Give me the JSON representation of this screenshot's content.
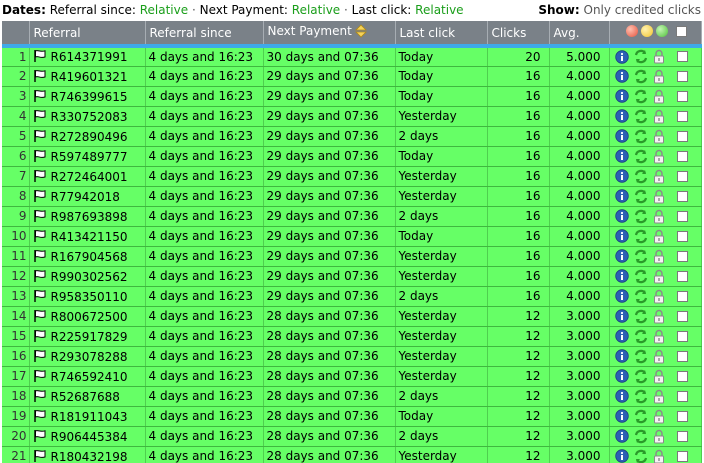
{
  "dates_bar": {
    "label": "Dates:",
    "referral_since_label": "Referral since:",
    "referral_since_value": "Relative",
    "next_payment_label": "Next Payment:",
    "next_payment_value": "Relative",
    "last_click_label": "Last click:",
    "last_click_value": "Relative",
    "separator": "·"
  },
  "show_bar": {
    "label": "Show:",
    "value": "Only credited clicks"
  },
  "columns": {
    "referral": "Referral",
    "referral_since": "Referral since",
    "next_payment": "Next Payment",
    "last_click": "Last click",
    "clicks": "Clicks",
    "avg": "Avg."
  },
  "colors": {
    "row_bg": "#66ff66",
    "header_bg": "#7a8188",
    "header_underline": "#3fa9e8",
    "link_green": "#1a9e1a"
  },
  "icons": [
    "flag-icon",
    "info-icon",
    "recycle-icon",
    "lock-icon",
    "sort-icon"
  ],
  "rows": [
    {
      "n": "1",
      "id": "R614371991",
      "since": "4 days and 16:23",
      "next": "30 days and 07:36",
      "last": "Today",
      "clicks": "20",
      "avg": "5.000"
    },
    {
      "n": "2",
      "id": "R419601321",
      "since": "4 days and 16:23",
      "next": "29 days and 07:36",
      "last": "Today",
      "clicks": "16",
      "avg": "4.000"
    },
    {
      "n": "3",
      "id": "R746399615",
      "since": "4 days and 16:23",
      "next": "29 days and 07:36",
      "last": "Today",
      "clicks": "16",
      "avg": "4.000"
    },
    {
      "n": "4",
      "id": "R330752083",
      "since": "4 days and 16:23",
      "next": "29 days and 07:36",
      "last": "Yesterday",
      "clicks": "16",
      "avg": "4.000"
    },
    {
      "n": "5",
      "id": "R272890496",
      "since": "4 days and 16:23",
      "next": "29 days and 07:36",
      "last": "2 days",
      "clicks": "16",
      "avg": "4.000"
    },
    {
      "n": "6",
      "id": "R597489777",
      "since": "4 days and 16:23",
      "next": "29 days and 07:36",
      "last": "Today",
      "clicks": "16",
      "avg": "4.000"
    },
    {
      "n": "7",
      "id": "R272464001",
      "since": "4 days and 16:23",
      "next": "29 days and 07:36",
      "last": "Yesterday",
      "clicks": "16",
      "avg": "4.000"
    },
    {
      "n": "8",
      "id": "R77942018",
      "since": "4 days and 16:23",
      "next": "29 days and 07:36",
      "last": "Yesterday",
      "clicks": "16",
      "avg": "4.000"
    },
    {
      "n": "9",
      "id": "R987693898",
      "since": "4 days and 16:23",
      "next": "29 days and 07:36",
      "last": "2 days",
      "clicks": "16",
      "avg": "4.000"
    },
    {
      "n": "10",
      "id": "R413421150",
      "since": "4 days and 16:23",
      "next": "29 days and 07:36",
      "last": "Today",
      "clicks": "16",
      "avg": "4.000"
    },
    {
      "n": "11",
      "id": "R167904568",
      "since": "4 days and 16:23",
      "next": "29 days and 07:36",
      "last": "Yesterday",
      "clicks": "16",
      "avg": "4.000"
    },
    {
      "n": "12",
      "id": "R990302562",
      "since": "4 days and 16:23",
      "next": "29 days and 07:36",
      "last": "Yesterday",
      "clicks": "16",
      "avg": "4.000"
    },
    {
      "n": "13",
      "id": "R958350110",
      "since": "4 days and 16:23",
      "next": "29 days and 07:36",
      "last": "2 days",
      "clicks": "16",
      "avg": "4.000"
    },
    {
      "n": "14",
      "id": "R800672500",
      "since": "4 days and 16:23",
      "next": "28 days and 07:36",
      "last": "Yesterday",
      "clicks": "12",
      "avg": "3.000"
    },
    {
      "n": "15",
      "id": "R225917829",
      "since": "4 days and 16:23",
      "next": "28 days and 07:36",
      "last": "Yesterday",
      "clicks": "12",
      "avg": "3.000"
    },
    {
      "n": "16",
      "id": "R293078288",
      "since": "4 days and 16:23",
      "next": "28 days and 07:36",
      "last": "Yesterday",
      "clicks": "12",
      "avg": "3.000"
    },
    {
      "n": "17",
      "id": "R746592410",
      "since": "4 days and 16:23",
      "next": "28 days and 07:36",
      "last": "Yesterday",
      "clicks": "12",
      "avg": "3.000"
    },
    {
      "n": "18",
      "id": "R52687688",
      "since": "4 days and 16:23",
      "next": "28 days and 07:36",
      "last": "2 days",
      "clicks": "12",
      "avg": "3.000"
    },
    {
      "n": "19",
      "id": "R181911043",
      "since": "4 days and 16:23",
      "next": "28 days and 07:36",
      "last": "Today",
      "clicks": "12",
      "avg": "3.000"
    },
    {
      "n": "20",
      "id": "R906445384",
      "since": "4 days and 16:23",
      "next": "28 days and 07:36",
      "last": "2 days",
      "clicks": "12",
      "avg": "3.000"
    },
    {
      "n": "21",
      "id": "R180432198",
      "since": "4 days and 16:23",
      "next": "28 days and 07:36",
      "last": "Yesterday",
      "clicks": "12",
      "avg": "3.000"
    }
  ]
}
